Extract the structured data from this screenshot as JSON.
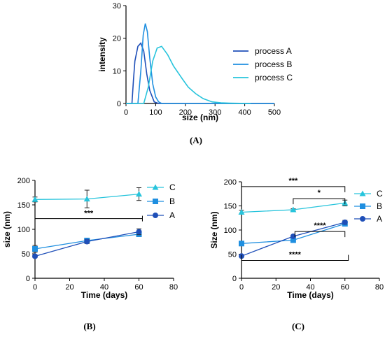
{
  "colors": {
    "A": "#1f4fb8",
    "B": "#1f8fe0",
    "C": "#27c4dc"
  },
  "chart_data": [
    {
      "id": "A",
      "type": "line",
      "panel_label": "(A)",
      "xlabel": "size (nm)",
      "ylabel": "intensity",
      "xlim": [
        0,
        500
      ],
      "ylim": [
        0,
        30
      ],
      "xticks": [
        0,
        100,
        200,
        300,
        400,
        500
      ],
      "yticks": [
        0,
        10,
        20,
        30
      ],
      "legend_position": "right",
      "series": [
        {
          "name": "process A",
          "x": [
            0,
            20,
            25,
            30,
            40,
            50,
            60,
            70,
            80,
            95,
            110,
            500
          ],
          "y": [
            0,
            0,
            7,
            13,
            17.5,
            18.5,
            16,
            9,
            4,
            0.5,
            0,
            0
          ]
        },
        {
          "name": "process B",
          "x": [
            0,
            40,
            50,
            58,
            65,
            72,
            80,
            90,
            100,
            110,
            120,
            500
          ],
          "y": [
            0,
            0,
            10,
            21,
            24.5,
            22,
            14,
            6,
            2,
            0.5,
            0,
            0
          ]
        },
        {
          "name": "process C",
          "x": [
            0,
            60,
            75,
            90,
            105,
            120,
            140,
            160,
            190,
            210,
            235,
            260,
            290,
            320,
            350,
            420
          ],
          "y": [
            0,
            0,
            5,
            13,
            17,
            17.5,
            15,
            11.5,
            7.5,
            5,
            3,
            1.5,
            0.5,
            0.2,
            0.1,
            0
          ]
        }
      ]
    },
    {
      "id": "B",
      "type": "line",
      "panel_label": "(B)",
      "xlabel": "Time (days)",
      "ylabel": "size (nm)",
      "xlim": [
        0,
        80
      ],
      "ylim": [
        0,
        200
      ],
      "xticks": [
        0,
        20,
        40,
        60,
        80
      ],
      "yticks": [
        0,
        50,
        100,
        150,
        200
      ],
      "legend_position": "right",
      "series": [
        {
          "name": "C",
          "marker": "triangle",
          "x": [
            0,
            30,
            60
          ],
          "y": [
            161,
            162,
            172
          ],
          "err": [
            5,
            18,
            13
          ]
        },
        {
          "name": "B",
          "marker": "square",
          "x": [
            0,
            30,
            60
          ],
          "y": [
            60,
            77,
            90
          ],
          "err": [
            7,
            5,
            5
          ]
        },
        {
          "name": "A",
          "marker": "circle",
          "x": [
            0,
            30,
            60
          ],
          "y": [
            45,
            75,
            95
          ],
          "err": [
            3,
            4,
            6
          ]
        }
      ],
      "annotations": [
        {
          "label": "***",
          "x1": 0,
          "x2": 62,
          "y": 122
        }
      ]
    },
    {
      "id": "C",
      "type": "line",
      "panel_label": "(C)",
      "xlabel": "Time (days)",
      "ylabel": "Size (nm)",
      "xlim": [
        0,
        80
      ],
      "ylim": [
        0,
        200
      ],
      "xticks": [
        0,
        20,
        40,
        60,
        80
      ],
      "yticks": [
        0,
        50,
        100,
        150,
        200
      ],
      "legend_position": "right",
      "series": [
        {
          "name": "C",
          "marker": "triangle",
          "x": [
            0,
            30,
            60
          ],
          "y": [
            137,
            142,
            156
          ],
          "err": [
            4,
            2,
            6
          ]
        },
        {
          "name": "B",
          "marker": "square",
          "x": [
            0,
            30,
            60
          ],
          "y": [
            72,
            79,
            113
          ],
          "err": [
            2,
            2,
            4
          ]
        },
        {
          "name": "A",
          "marker": "circle",
          "x": [
            0,
            30,
            60
          ],
          "y": [
            46,
            87,
            116
          ],
          "err": [
            2,
            2,
            4
          ]
        }
      ],
      "annotations": [
        {
          "label": "***",
          "x1": 0,
          "x2": 60,
          "y": 190
        },
        {
          "label": "*",
          "x1": 30,
          "x2": 60,
          "y": 165
        },
        {
          "label": "****",
          "x1": 31,
          "x2": 60,
          "y": 97
        },
        {
          "label": "****",
          "x1": 0,
          "x2": 62,
          "y": 37
        }
      ]
    }
  ]
}
